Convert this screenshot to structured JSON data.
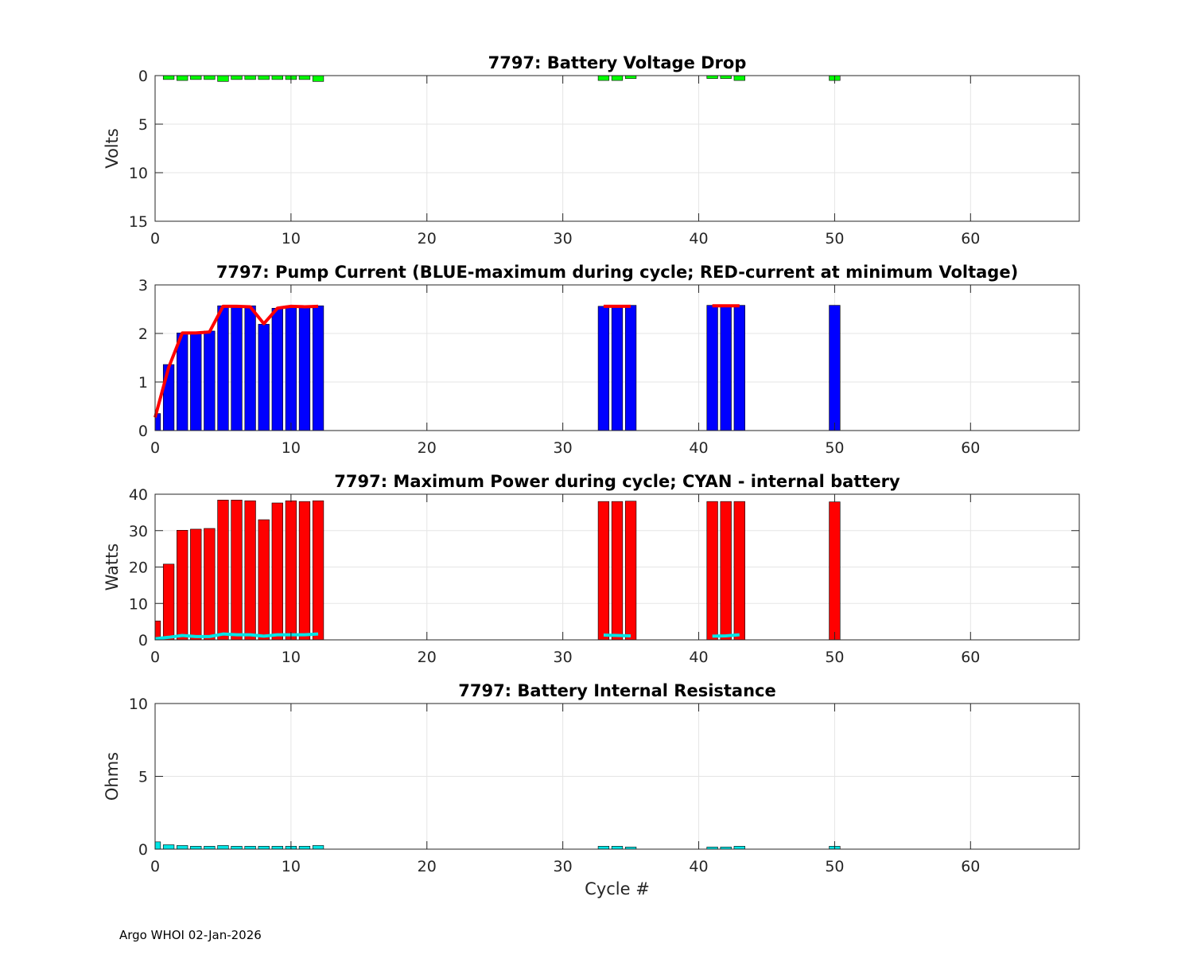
{
  "footer": "Argo WHOI 02-Jan-2026",
  "colors": {
    "voltage": "#00ff00",
    "current": "#0000ff",
    "current_line": "#ff0000",
    "power": "#ff0000",
    "power_line": "#00e5e5",
    "resistance": "#00e5e5",
    "grid": "#e5e5e5",
    "axes": "#262626"
  },
  "chart_data": [
    {
      "type": "bar",
      "title": "7797: Battery Voltage Drop",
      "xlabel": "",
      "ylabel": "Volts",
      "xlim": [
        0,
        68
      ],
      "ylim": [
        0,
        15
      ],
      "y_reversed": true,
      "xticks": [
        0,
        10,
        20,
        30,
        40,
        50,
        60
      ],
      "yticks": [
        0,
        5,
        10,
        15
      ],
      "grid": true,
      "x": [
        1,
        2,
        3,
        4,
        5,
        6,
        7,
        8,
        9,
        10,
        11,
        12,
        33,
        34,
        35,
        41,
        42,
        43,
        50
      ],
      "values": [
        0.4,
        0.5,
        0.4,
        0.4,
        0.6,
        0.4,
        0.4,
        0.4,
        0.4,
        0.4,
        0.4,
        0.6,
        0.5,
        0.5,
        0.3,
        0.3,
        0.3,
        0.5,
        0.5
      ]
    },
    {
      "type": "bar",
      "title": "7797: Pump Current (BLUE-maximum during cycle; RED-current at minimum Voltage)",
      "xlabel": "",
      "ylabel": "",
      "xlim": [
        0,
        68
      ],
      "ylim": [
        0,
        3
      ],
      "xticks": [
        0,
        10,
        20,
        30,
        40,
        50,
        60
      ],
      "yticks": [
        0,
        1,
        2,
        3
      ],
      "grid": true,
      "series": [
        {
          "kind": "bar",
          "x": [
            0,
            1,
            2,
            3,
            4,
            5,
            6,
            7,
            8,
            9,
            10,
            11,
            12,
            33,
            34,
            35,
            41,
            42,
            43,
            50
          ],
          "values": [
            0.35,
            1.36,
            2.01,
            2.02,
            2.05,
            2.57,
            2.57,
            2.57,
            2.19,
            2.52,
            2.57,
            2.56,
            2.57,
            2.56,
            2.57,
            2.58,
            2.58,
            2.57,
            2.58,
            2.58
          ]
        },
        {
          "kind": "line",
          "segments": [
            {
              "x": [
                0,
                1,
                2,
                3,
                4,
                5,
                6,
                7,
                8,
                9,
                10,
                11,
                12
              ],
              "values": [
                0.27,
                1.3,
                2.01,
                2.01,
                2.03,
                2.56,
                2.56,
                2.55,
                2.2,
                2.52,
                2.56,
                2.55,
                2.56
              ]
            },
            {
              "x": [
                33,
                34,
                35
              ],
              "values": [
                2.56,
                2.56,
                2.56
              ]
            },
            {
              "x": [
                41,
                42,
                43
              ],
              "values": [
                2.57,
                2.57,
                2.57
              ]
            }
          ]
        }
      ]
    },
    {
      "type": "bar",
      "title": "7797: Maximum Power during cycle; CYAN - internal battery",
      "xlabel": "",
      "ylabel": "Watts",
      "xlim": [
        0,
        68
      ],
      "ylim": [
        0,
        40
      ],
      "xticks": [
        0,
        10,
        20,
        30,
        40,
        50,
        60
      ],
      "yticks": [
        0,
        10,
        20,
        30,
        40
      ],
      "grid": true,
      "series": [
        {
          "kind": "bar",
          "x": [
            0,
            1,
            2,
            3,
            4,
            5,
            6,
            7,
            8,
            9,
            10,
            11,
            12,
            33,
            34,
            35,
            41,
            42,
            43,
            50
          ],
          "values": [
            5.2,
            20.8,
            30.1,
            30.4,
            30.6,
            38.4,
            38.4,
            38.2,
            33.0,
            37.6,
            38.2,
            38.0,
            38.2,
            38.0,
            38.0,
            38.1,
            38.0,
            38.0,
            38.0,
            37.9
          ]
        },
        {
          "kind": "line",
          "segments": [
            {
              "x": [
                0,
                1,
                2,
                3,
                4,
                5,
                6,
                7,
                8,
                9,
                10,
                11,
                12
              ],
              "values": [
                0.3,
                0.7,
                1.2,
                0.9,
                0.9,
                1.6,
                1.4,
                1.4,
                1.0,
                1.4,
                1.4,
                1.4,
                1.6
              ]
            },
            {
              "x": [
                33,
                34,
                35
              ],
              "values": [
                1.3,
                1.2,
                1.1
              ]
            },
            {
              "x": [
                41,
                42,
                43
              ],
              "values": [
                1.0,
                1.1,
                1.4
              ]
            }
          ]
        }
      ]
    },
    {
      "type": "bar",
      "title": "7797: Battery Internal Resistance",
      "xlabel": "Cycle #",
      "ylabel": "Ohms",
      "xlim": [
        0,
        68
      ],
      "ylim": [
        0,
        10
      ],
      "xticks": [
        0,
        10,
        20,
        30,
        40,
        50,
        60
      ],
      "yticks": [
        0,
        5,
        10
      ],
      "grid": true,
      "x": [
        0,
        1,
        2,
        3,
        4,
        5,
        6,
        7,
        8,
        9,
        10,
        11,
        12,
        33,
        34,
        35,
        41,
        42,
        43,
        50
      ],
      "values": [
        0.5,
        0.3,
        0.25,
        0.2,
        0.2,
        0.25,
        0.2,
        0.2,
        0.2,
        0.2,
        0.2,
        0.2,
        0.25,
        0.2,
        0.2,
        0.15,
        0.15,
        0.15,
        0.2,
        0.2
      ]
    }
  ]
}
